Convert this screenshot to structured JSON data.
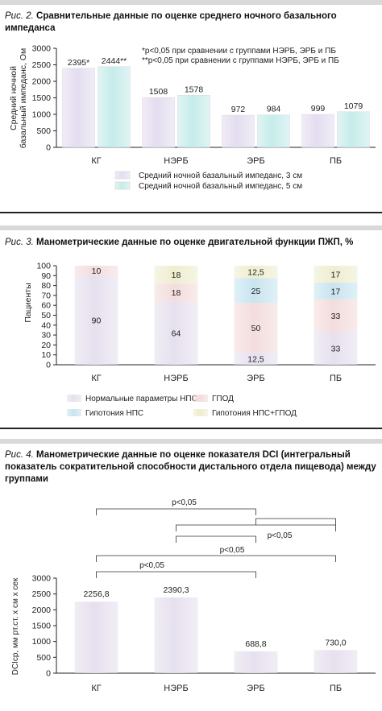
{
  "fig2": {
    "caption_prefix": "Рис. 2.",
    "caption": "Сравнительные данные по оценке среднего ночного базального импеданса",
    "chart_data": {
      "type": "bar",
      "ylabel": "Средний ночной базальный импеданс, Ом",
      "ylim": [
        0,
        3000
      ],
      "yticks": [
        "0",
        "500",
        "1000",
        "1500",
        "2000",
        "2500",
        "3000"
      ],
      "categories": [
        "КГ",
        "НЭРБ",
        "ЭРБ",
        "ПБ"
      ],
      "series": [
        {
          "name": "Средний ночной базальный импеданс, 3 см",
          "values": [
            2395,
            1508,
            972,
            999
          ],
          "labels": [
            "2395*",
            "1508",
            "972",
            "999"
          ],
          "color": "#e4ddf0"
        },
        {
          "name": "Средний ночной базальный импеданс, 5 см",
          "values": [
            2444,
            1578,
            984,
            1079
          ],
          "labels": [
            "2444**",
            "1578",
            "984",
            "1079"
          ],
          "color": "#c6ecea"
        }
      ],
      "notes": [
        "*p<0,05 при сравнении с группами НЭРБ, ЭРБ и ПБ",
        "**p<0,05 при сравнении с группами НЭРБ, ЭРБ и ПБ"
      ]
    }
  },
  "fig3": {
    "caption_prefix": "Рис. 3.",
    "caption": "Манометрические данные по оценке двигательной функции ПЖП, %",
    "chart_data": {
      "type": "bar",
      "stacked": true,
      "ylabel": "Пациенты",
      "ylim": [
        0,
        100
      ],
      "yticks": [
        "0",
        "10",
        "20",
        "30",
        "40",
        "50",
        "60",
        "70",
        "80",
        "90",
        "100"
      ],
      "categories": [
        "КГ",
        "НЭРБ",
        "ЭРБ",
        "ПБ"
      ],
      "series": [
        {
          "name": "Нормальные параметры НПС",
          "values": [
            90,
            64,
            12.5,
            33
          ],
          "labels": [
            "90",
            "64",
            "12,5",
            "33"
          ],
          "color": "#e6e0ee"
        },
        {
          "name": "ГПОД",
          "values": [
            10,
            18,
            50,
            33
          ],
          "labels": [
            "10",
            "18",
            "50",
            "33"
          ],
          "color": "#f3dcdc"
        },
        {
          "name": "Гипотония НПС",
          "values": [
            0,
            0,
            25,
            17
          ],
          "labels": [
            "",
            "",
            "25",
            "17"
          ],
          "color": "#c9e4ef"
        },
        {
          "name": "Гипотония НПС+ГПОД",
          "values": [
            0,
            18,
            12.5,
            17
          ],
          "labels": [
            "",
            "18",
            "12,5",
            "17"
          ],
          "color": "#efedcf"
        }
      ]
    }
  },
  "fig4": {
    "caption_prefix": "Рис. 4.",
    "caption": "Манометрические данные по оценке показателя DCI (интегральный показатель сократительной способности дистального отдела пищевода) между группами",
    "chart_data": {
      "type": "bar",
      "ylabel": "DCIср, мм рт.ст. x см x сек",
      "ylim": [
        0,
        3000
      ],
      "yticks": [
        "0",
        "500",
        "1000",
        "1500",
        "2000",
        "2500",
        "3000"
      ],
      "categories": [
        "КГ",
        "НЭРБ",
        "ЭРБ",
        "ПБ"
      ],
      "values": [
        2256.8,
        2390.3,
        688.8,
        730.0
      ],
      "labels": [
        "2256,8",
        "2390,3",
        "688,8",
        "730,0"
      ],
      "brackets": [
        {
          "label": "p<0,05"
        },
        {
          "label": "p<0,05"
        },
        {
          "label": "p<0,05"
        },
        {
          "label": "p<0,05"
        }
      ]
    }
  }
}
